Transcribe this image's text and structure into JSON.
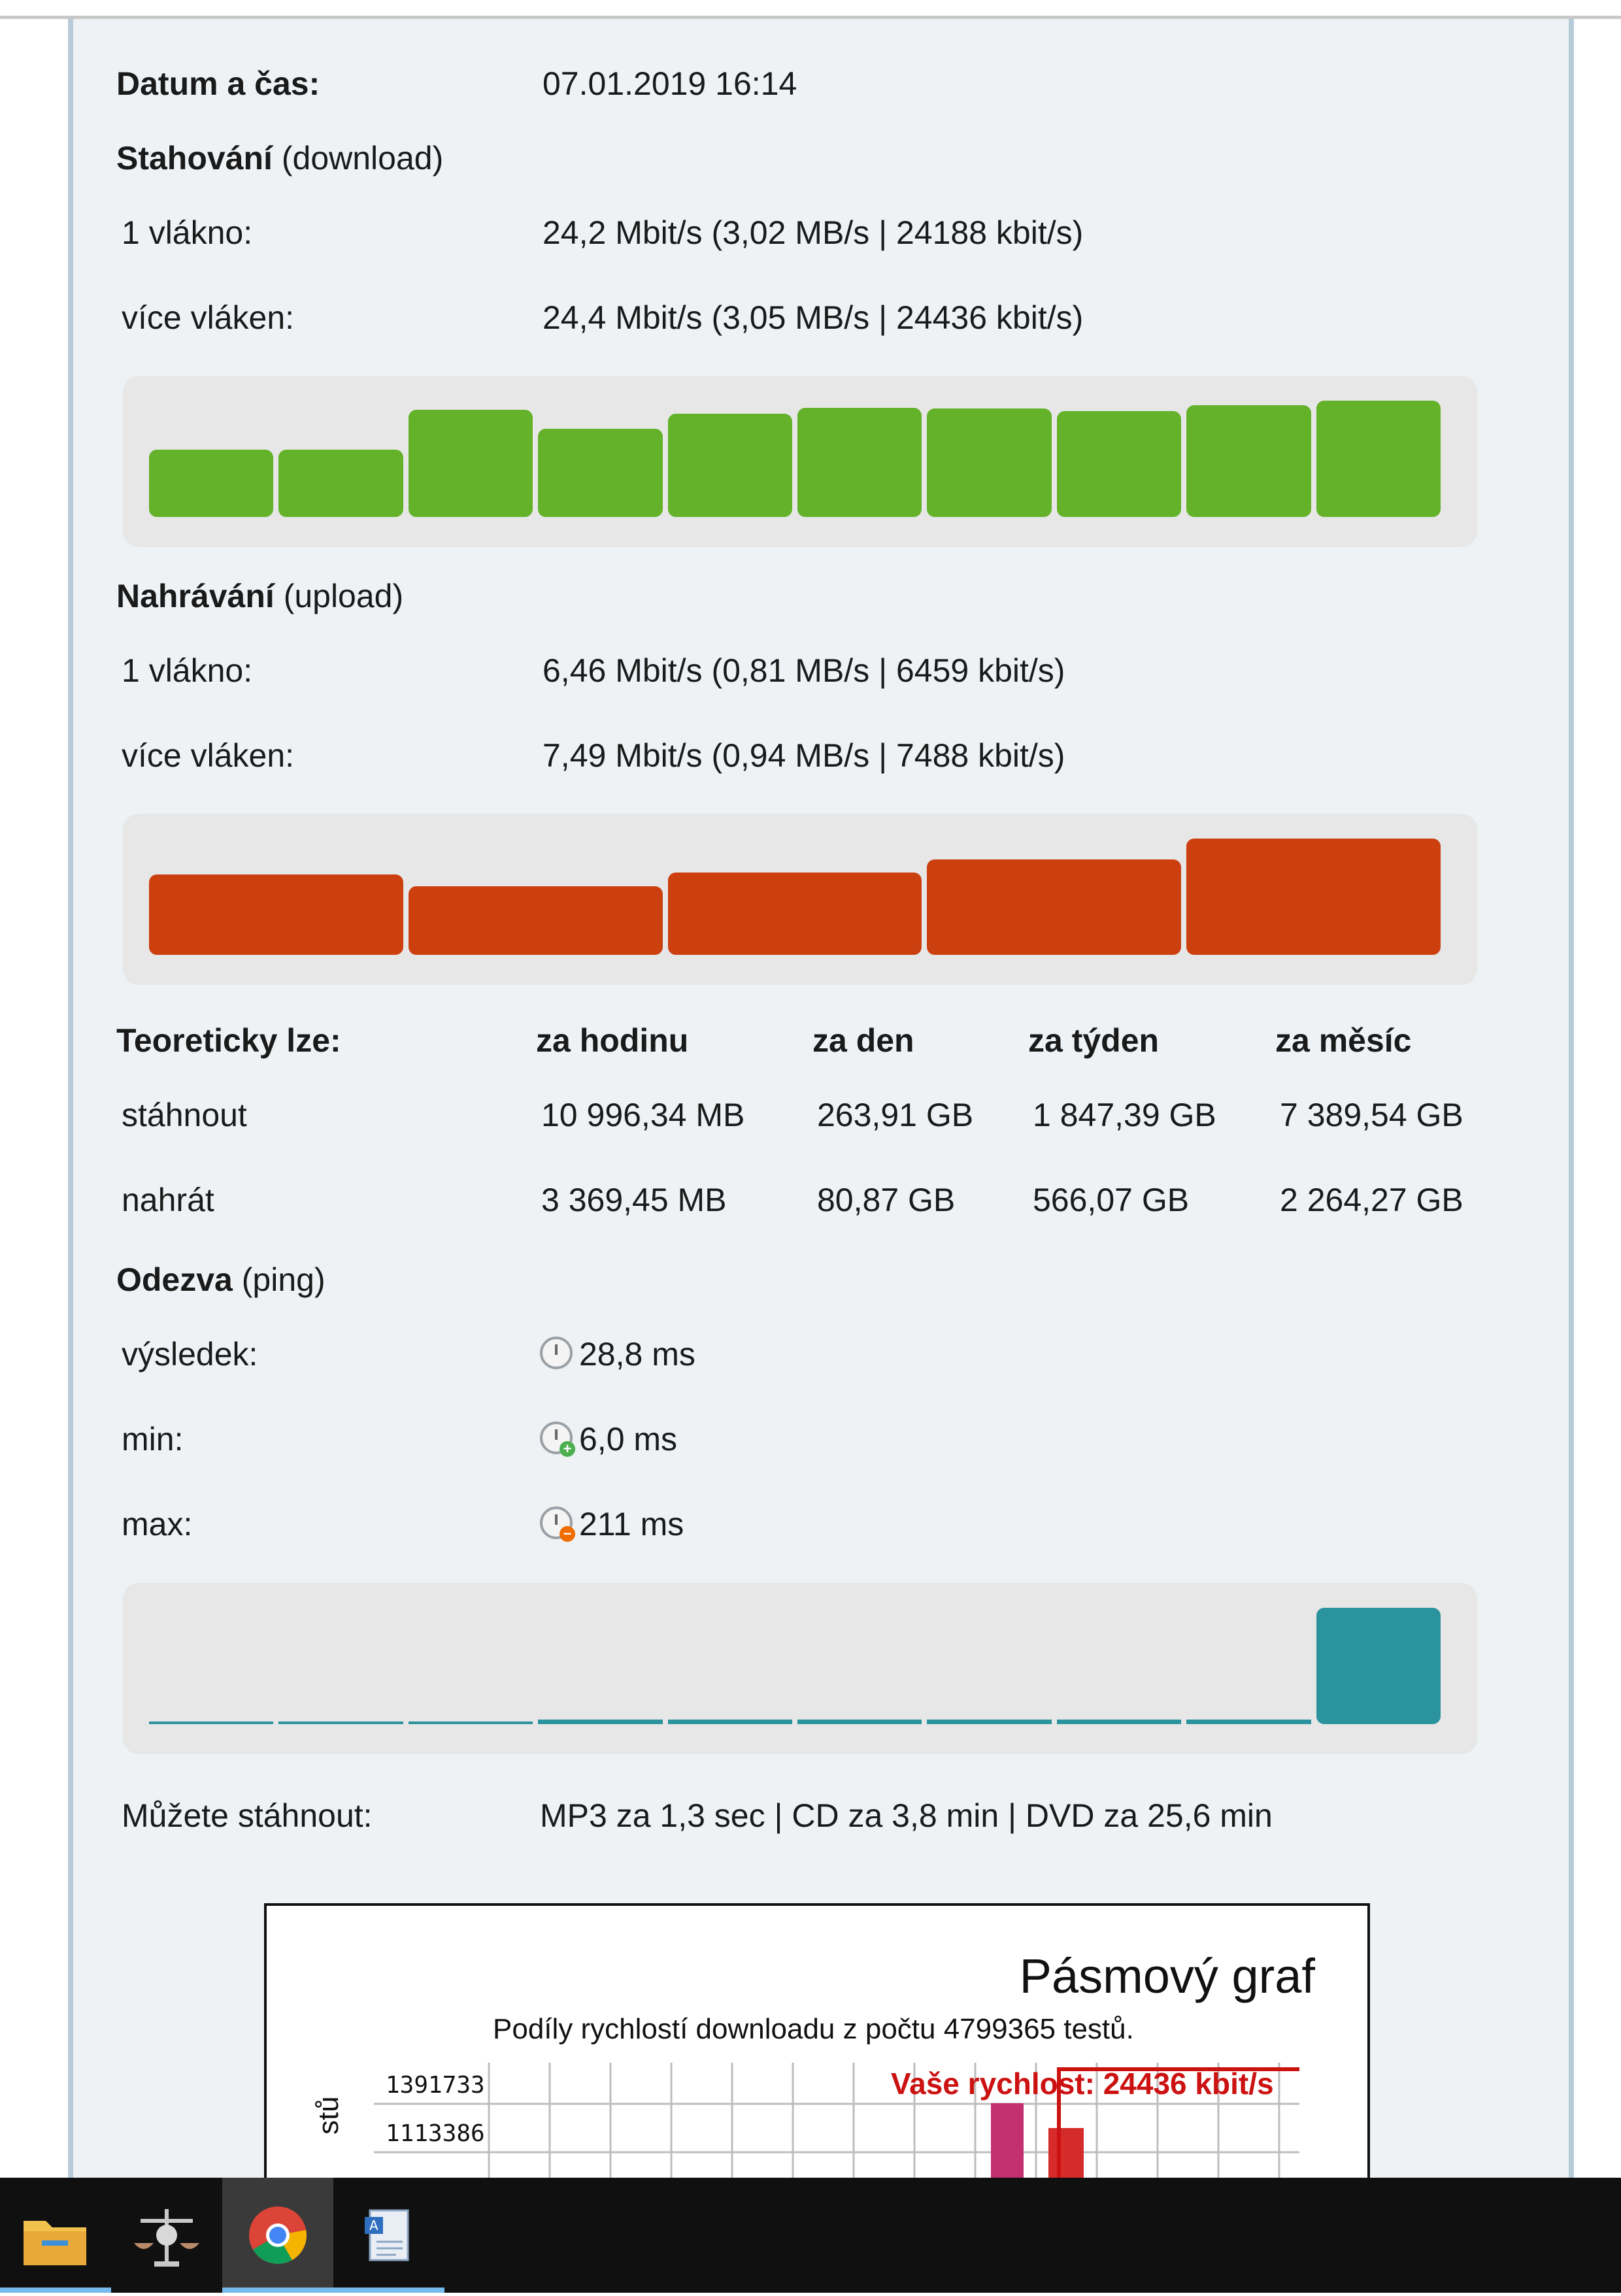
{
  "datetime": {
    "label": "Datum a čas:",
    "value": "07.01.2019 16:14"
  },
  "download": {
    "title": "Stahování",
    "subtitle": "(download)",
    "single_label": "1 vlákno:",
    "single_value": "24,2 Mbit/s (3,02 MB/s | 24188 kbit/s)",
    "multi_label": "více vláken:",
    "multi_value": "24,4 Mbit/s (3,05 MB/s | 24436 kbit/s)",
    "bar_levels": [
      0.58,
      0.58,
      0.92,
      0.76,
      0.89,
      0.94,
      0.93,
      0.91,
      0.96,
      1.0
    ],
    "color": "#63b22a"
  },
  "upload": {
    "title": "Nahrávání",
    "subtitle": "(upload)",
    "single_label": "1 vlákno:",
    "single_value": "6,46 Mbit/s (0,81 MB/s | 6459 kbit/s)",
    "multi_label": "více vláken:",
    "multi_value": "7,49 Mbit/s (0,94 MB/s | 7488 kbit/s)",
    "bar_levels": [
      0.69,
      0.59,
      0.71,
      0.82,
      1.0
    ],
    "color": "#cc4010"
  },
  "theoretical": {
    "title": "Teoreticky lze:",
    "columns": [
      "za hodinu",
      "za den",
      "za týden",
      "za měsíc"
    ],
    "rows": [
      {
        "label": "stáhnout",
        "values": [
          "10 996,34 MB",
          "263,91 GB",
          "1 847,39 GB",
          "7 389,54 GB"
        ]
      },
      {
        "label": "nahrát",
        "values": [
          "3 369,45 MB",
          "80,87 GB",
          "566,07 GB",
          "2 264,27 GB"
        ]
      }
    ]
  },
  "ping": {
    "title": "Odezva",
    "subtitle": "(ping)",
    "result_label": "výsledek:",
    "result_value": "28,8 ms",
    "min_label": "min:",
    "min_value": "6,0 ms",
    "max_label": "max:",
    "max_value": "211 ms",
    "bar_levels": [
      0.02,
      0.02,
      0.02,
      0.03,
      0.03,
      0.03,
      0.03,
      0.03,
      0.03,
      1.0
    ],
    "color": "#2b939d"
  },
  "downloads_estimate": {
    "label": "Můžete stáhnout:",
    "value": "MP3 za 1,3 sec | CD za 3,8 min | DVD za 25,6 min"
  },
  "band_chart": {
    "title": "Pásmový graf",
    "subtitle": "Podíly rychlostí downloadu z počtu 4799365 testů.",
    "your_speed": "Vaše rychlost: 24436 kbit/s",
    "ytick_1": "1391733",
    "ytick_2": "1113386",
    "ylabel_fragment": "stů"
  },
  "taskbar": {
    "items": [
      "file-explorer",
      "app-scales",
      "chrome",
      "document-app"
    ]
  }
}
